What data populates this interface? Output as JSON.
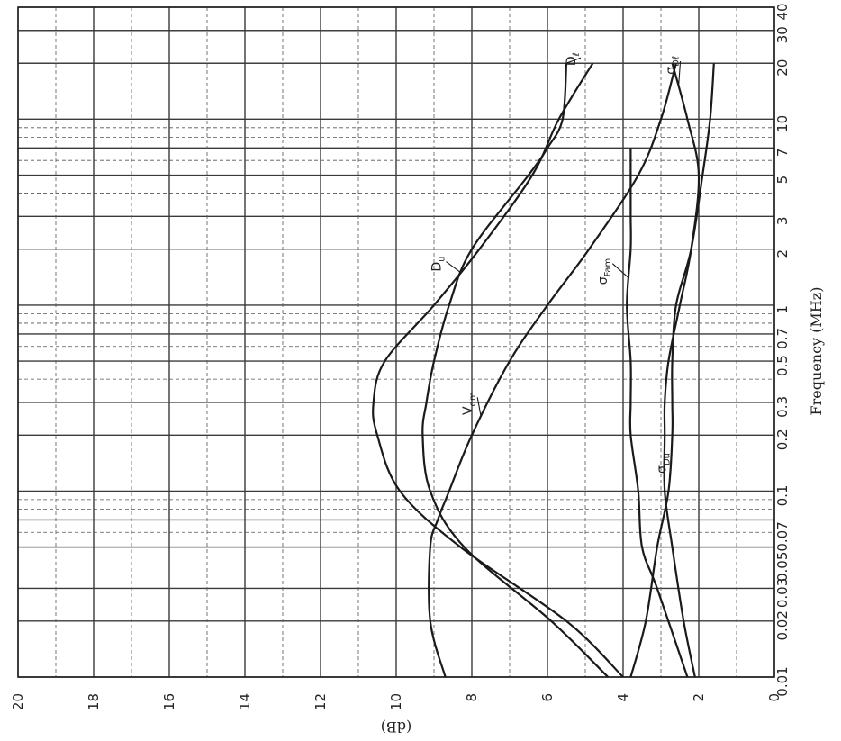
{
  "chart_data": {
    "type": "line",
    "orientation": "rotated",
    "x_axis": {
      "label": "Frequency (MHz)",
      "scale": "log",
      "range": [
        0.01,
        40
      ],
      "tick_labels": [
        "0.01",
        "0.02",
        "0.03",
        "0.050.07",
        "0.1",
        "0.2",
        "0.3",
        "0.5",
        "0.7",
        "1",
        "2",
        "3",
        "5",
        "7",
        "10",
        "20",
        "30",
        "40"
      ],
      "tick_positions": [
        0.01,
        0.02,
        0.03,
        0.05,
        0.1,
        0.2,
        0.3,
        0.5,
        0.7,
        1,
        2,
        3,
        5,
        7,
        10,
        20,
        30,
        40
      ]
    },
    "y_axis": {
      "label": "(dB)",
      "range": [
        0,
        20
      ],
      "tick_labels": [
        "0",
        "2",
        "4",
        "6",
        "8",
        "10",
        "12",
        "14",
        "16",
        "18",
        "20"
      ],
      "ticks": [
        0,
        2,
        4,
        6,
        8,
        10,
        12,
        14,
        16,
        18,
        20
      ]
    },
    "grid": true,
    "series": [
      {
        "name": "Du",
        "label_main": "D",
        "label_sub": "u",
        "x": [
          0.01,
          0.02,
          0.05,
          0.1,
          0.2,
          0.3,
          0.5,
          1,
          2,
          5,
          10,
          20
        ],
        "y": [
          4.0,
          5.5,
          8.3,
          9.9,
          10.5,
          10.6,
          10.3,
          9.0,
          7.8,
          6.4,
          5.7,
          4.8
        ]
      },
      {
        "name": "Dl",
        "label_main": "D",
        "label_sub": "ℓ",
        "x": [
          0.01,
          0.02,
          0.05,
          0.1,
          0.2,
          0.3,
          0.5,
          1,
          2,
          5,
          7,
          10,
          20
        ],
        "y": [
          4.4,
          5.9,
          8.2,
          9.1,
          9.3,
          9.2,
          9.0,
          8.6,
          8.0,
          6.5,
          6.0,
          5.6,
          5.5
        ]
      },
      {
        "name": "Vdm",
        "label_main": "V",
        "label_sub": "dm",
        "x": [
          0.01,
          0.02,
          0.05,
          0.07,
          0.1,
          0.2,
          0.5,
          1,
          2,
          5,
          10,
          20
        ],
        "y": [
          8.7,
          9.1,
          9.1,
          8.9,
          8.6,
          8.0,
          7.0,
          6.0,
          4.9,
          3.6,
          3.0,
          2.6
        ]
      },
      {
        "name": "σFam",
        "label_main": "σ",
        "label_sub": "Fam",
        "x": [
          0.01,
          0.03,
          0.05,
          0.1,
          0.2,
          0.3,
          0.5,
          1,
          2,
          3,
          5,
          7
        ],
        "y": [
          2.3,
          3.1,
          3.5,
          3.6,
          3.8,
          3.8,
          3.8,
          3.9,
          3.8,
          3.8,
          3.8,
          3.8
        ]
      },
      {
        "name": "σDu",
        "label_main": "σ",
        "label_sub": "Du",
        "x": [
          0.01,
          0.02,
          0.05,
          0.1,
          0.2,
          0.3,
          0.5,
          1,
          2,
          5,
          10,
          20
        ],
        "y": [
          3.8,
          3.4,
          3.1,
          2.8,
          2.7,
          2.7,
          2.7,
          2.6,
          2.2,
          1.9,
          1.7,
          1.6
        ]
      },
      {
        "name": "σDl",
        "label_main": "σ",
        "label_sub": "Dℓ",
        "x": [
          0.01,
          0.02,
          0.05,
          0.1,
          0.2,
          0.3,
          0.5,
          1,
          2,
          5,
          10,
          20
        ],
        "y": [
          2.1,
          2.4,
          2.7,
          2.9,
          2.9,
          2.9,
          2.8,
          2.5,
          2.2,
          2.0,
          2.3,
          2.7
        ]
      }
    ]
  }
}
